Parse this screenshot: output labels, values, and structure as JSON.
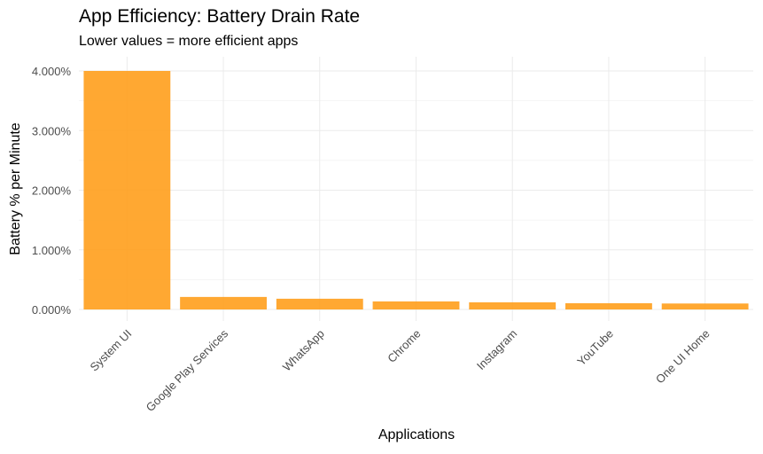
{
  "chart_data": {
    "type": "bar",
    "title": "App Efficiency: Battery Drain Rate",
    "subtitle": "Lower values = more efficient apps",
    "xlabel": "Applications",
    "ylabel": "Battery % per Minute",
    "categories": [
      "System UI",
      "Google Play Services",
      "WhatsApp",
      "Chrome",
      "Instagram",
      "YouTube",
      "One UI Home"
    ],
    "values": [
      4.0,
      0.21,
      0.18,
      0.135,
      0.12,
      0.105,
      0.1
    ],
    "ylim": [
      0,
      4.2
    ],
    "yticks": [
      0,
      1,
      2,
      3,
      4
    ],
    "ytick_labels": [
      "0.000%",
      "1.000%",
      "2.000%",
      "3.000%",
      "4.000%"
    ],
    "bar_color": "#ff9f1c",
    "grid": true,
    "legend": "none"
  }
}
